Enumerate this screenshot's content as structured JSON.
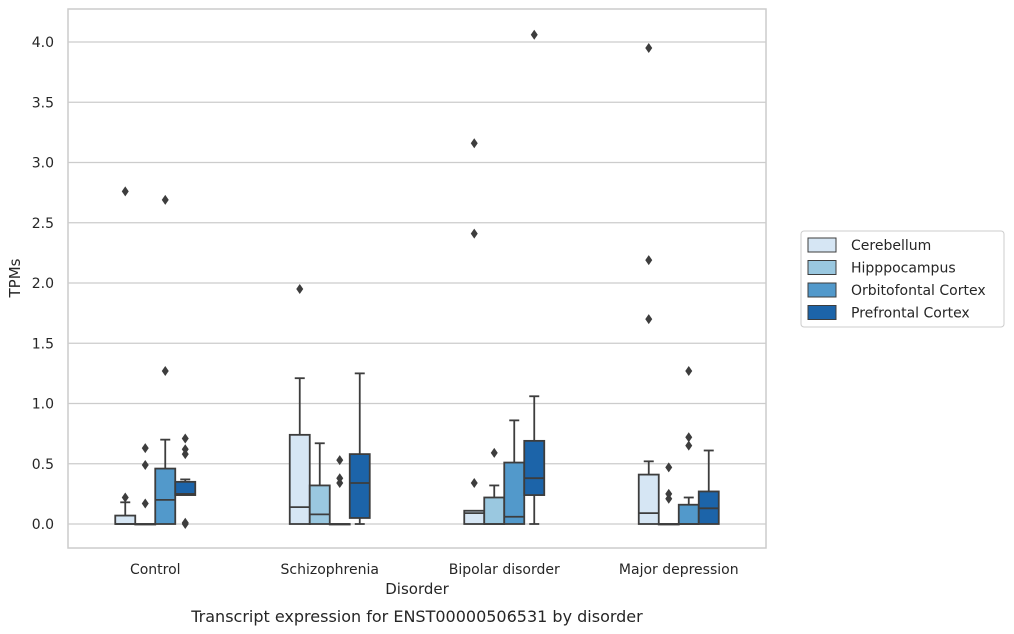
{
  "chart_data": {
    "type": "box",
    "title": "",
    "caption": "Transcript expression for ENST00000506531 by disorder",
    "xlabel": "Disorder",
    "ylabel": "TPMs",
    "ylim": [
      -0.2,
      4.27
    ],
    "yticks": [
      0.0,
      0.5,
      1.0,
      1.5,
      2.0,
      2.5,
      3.0,
      3.5,
      4.0
    ],
    "ytick_labels": [
      "0.0",
      "0.5",
      "1.0",
      "1.5",
      "2.0",
      "2.5",
      "3.0",
      "3.5",
      "4.0"
    ],
    "grid": "horizontal",
    "legend_position": "right",
    "categories": [
      "Control",
      "Schizophrenia",
      "Bipolar disorder",
      "Major depression"
    ],
    "series": [
      {
        "name": "Cerebellum",
        "color": "#d6e6f4",
        "boxes": [
          {
            "q1": 0.0,
            "median": 0.0,
            "q3": 0.07,
            "whisker_low": 0.0,
            "whisker_high": 0.18,
            "outliers": [
              0.22,
              2.76
            ]
          },
          {
            "q1": 0.0,
            "median": 0.14,
            "q3": 0.74,
            "whisker_low": 0.0,
            "whisker_high": 1.21,
            "outliers": [
              1.95
            ]
          },
          {
            "q1": 0.0,
            "median": 0.09,
            "q3": 0.11,
            "whisker_low": 0.0,
            "whisker_high": 0.11,
            "outliers": [
              0.34,
              2.41,
              3.16
            ]
          },
          {
            "q1": 0.0,
            "median": 0.09,
            "q3": 0.41,
            "whisker_low": 0.0,
            "whisker_high": 0.52,
            "outliers": [
              1.7,
              2.19,
              3.95
            ]
          }
        ]
      },
      {
        "name": "Hipppocampus",
        "color": "#9ac8e0",
        "boxes": [
          {
            "q1": 0.0,
            "median": 0.0,
            "q3": 0.0,
            "whisker_low": 0.0,
            "whisker_high": 0.0,
            "outliers": [
              0.17,
              0.49,
              0.63
            ]
          },
          {
            "q1": 0.0,
            "median": 0.08,
            "q3": 0.32,
            "whisker_low": 0.0,
            "whisker_high": 0.67,
            "outliers": []
          },
          {
            "q1": 0.0,
            "median": 0.0,
            "q3": 0.22,
            "whisker_low": 0.0,
            "whisker_high": 0.32,
            "outliers": [
              0.59
            ]
          },
          {
            "q1": 0.0,
            "median": 0.0,
            "q3": 0.0,
            "whisker_low": 0.0,
            "whisker_high": 0.0,
            "outliers": [
              0.21,
              0.25,
              0.47
            ]
          }
        ]
      },
      {
        "name": "Orbitofontal Cortex",
        "color": "#5299cb",
        "boxes": [
          {
            "q1": 0.0,
            "median": 0.2,
            "q3": 0.46,
            "whisker_low": 0.0,
            "whisker_high": 0.7,
            "outliers": [
              1.27,
              2.69
            ]
          },
          {
            "q1": 0.0,
            "median": 0.0,
            "q3": 0.0,
            "whisker_low": 0.0,
            "whisker_high": 0.0,
            "outliers": [
              0.34,
              0.38,
              0.53
            ]
          },
          {
            "q1": 0.0,
            "median": 0.06,
            "q3": 0.51,
            "whisker_low": 0.0,
            "whisker_high": 0.86,
            "outliers": []
          },
          {
            "q1": 0.0,
            "median": 0.0,
            "q3": 0.16,
            "whisker_low": 0.0,
            "whisker_high": 0.22,
            "outliers": [
              0.65,
              0.72,
              1.27
            ]
          }
        ]
      },
      {
        "name": "Prefrontal Cortex",
        "color": "#1c64a9",
        "boxes": [
          {
            "q1": 0.24,
            "median": 0.25,
            "q3": 0.35,
            "whisker_low": 0.24,
            "whisker_high": 0.37,
            "outliers": [
              0.0,
              0.01,
              0.58,
              0.62,
              0.71
            ]
          },
          {
            "q1": 0.05,
            "median": 0.34,
            "q3": 0.58,
            "whisker_low": 0.0,
            "whisker_high": 1.25,
            "outliers": []
          },
          {
            "q1": 0.24,
            "median": 0.38,
            "q3": 0.69,
            "whisker_low": 0.0,
            "whisker_high": 1.06,
            "outliers": [
              4.06
            ]
          },
          {
            "q1": 0.0,
            "median": 0.13,
            "q3": 0.27,
            "whisker_low": 0.0,
            "whisker_high": 0.61,
            "outliers": []
          }
        ]
      }
    ]
  }
}
